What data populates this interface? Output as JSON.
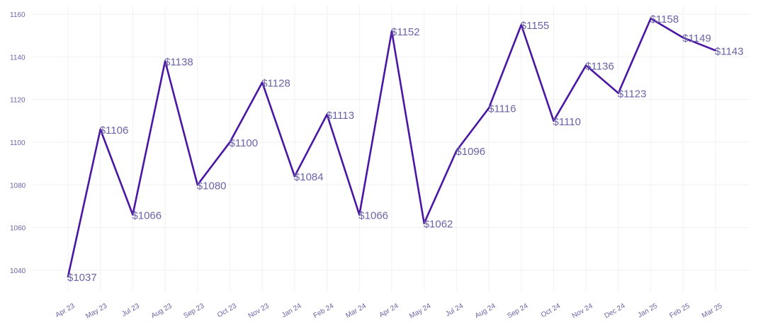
{
  "chart_data": {
    "type": "line",
    "title": "",
    "xlabel": "",
    "ylabel": "",
    "categories": [
      "Apr 23",
      "May 23",
      "Jul 23",
      "Aug 23",
      "Sep 23",
      "Oct 23",
      "Nov 23",
      "Jan 24",
      "Feb 24",
      "Mar 24",
      "Apr 24",
      "May 24",
      "Jul 24",
      "Aug 24",
      "Sep 24",
      "Oct 24",
      "Nov 24",
      "Dec 24",
      "Jan 25",
      "Feb 25",
      "Mar 25"
    ],
    "series": [
      {
        "name": "Value",
        "color": "#4a16a3",
        "values": [
          1037,
          1106,
          1066,
          1138,
          1080,
          1100,
          1128,
          1084,
          1113,
          1066,
          1152,
          1062,
          1096,
          1116,
          1155,
          1110,
          1136,
          1123,
          1158,
          1149,
          1143
        ]
      }
    ],
    "data_labels": [
      "$1037",
      "$1106",
      "$1066",
      "$1138",
      "$1080",
      "$1100",
      "$1128",
      "$1084",
      "$1113",
      "$1066",
      "$1152",
      "$1062",
      "$1096",
      "$1116",
      "$1155",
      "$1110",
      "$1136",
      "$1123",
      "$1158",
      "$1149",
      "$1143"
    ],
    "y_ticks": [
      1040,
      1060,
      1080,
      1100,
      1120,
      1140,
      1160
    ],
    "ylim": [
      1030,
      1164
    ],
    "grid": true,
    "legend": "none"
  }
}
